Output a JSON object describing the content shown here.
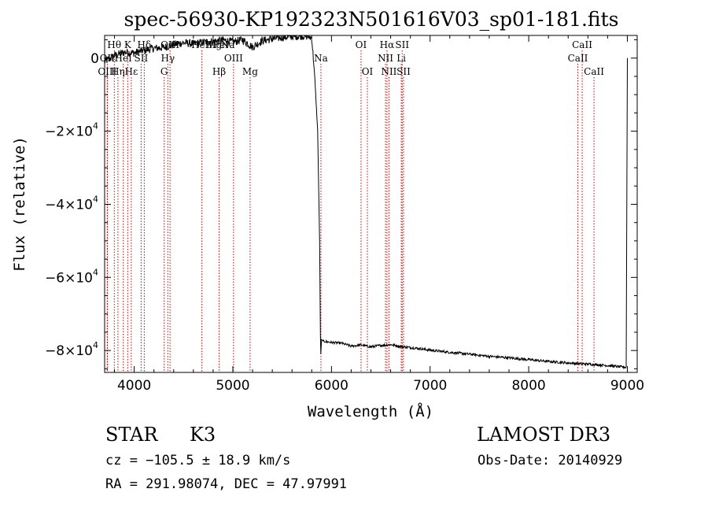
{
  "chart_data": {
    "type": "line",
    "title": "spec-56930-KP192323N501616V03_sp01-181.fits",
    "xlabel": "Wavelength (Å)",
    "ylabel": "Flux (relative)",
    "xlim": [
      3700,
      9100
    ],
    "ylim": [
      -86000,
      6200
    ],
    "x_ticks": [
      {
        "value": 4000,
        "label": "4000"
      },
      {
        "value": 5000,
        "label": "5000"
      },
      {
        "value": 6000,
        "label": "6000"
      },
      {
        "value": 7000,
        "label": "7000"
      },
      {
        "value": 8000,
        "label": "8000"
      },
      {
        "value": 9000,
        "label": "9000"
      }
    ],
    "y_ticks": [
      {
        "value": 0,
        "label": "0"
      },
      {
        "value": -20000,
        "label": "−2×10",
        "exp": "4"
      },
      {
        "value": -40000,
        "label": "−4×10",
        "exp": "4"
      },
      {
        "value": -60000,
        "label": "−6×10",
        "exp": "4"
      },
      {
        "value": -80000,
        "label": "−8×10",
        "exp": "4"
      }
    ],
    "spectrum": {
      "name": "flux",
      "x": [
        3700,
        3800,
        3900,
        4000,
        4100,
        4200,
        4300,
        4400,
        4500,
        4600,
        4700,
        4800,
        4900,
        5000,
        5100,
        5200,
        5300,
        5400,
        5500,
        5600,
        5700,
        5750,
        5800,
        5830,
        5860,
        5880,
        5890,
        5900,
        5920,
        6000,
        6100,
        6200,
        6300,
        6400,
        6500,
        6600,
        6700,
        6800,
        6900,
        7000,
        7200,
        7400,
        7600,
        7800,
        8000,
        8200,
        8400,
        8500,
        8600,
        8700,
        8800,
        8900,
        8990,
        9000
      ],
      "y": [
        -1000,
        700,
        1600,
        1400,
        2100,
        2700,
        2900,
        3700,
        4200,
        3900,
        4300,
        4600,
        4900,
        4400,
        5000,
        3000,
        4800,
        5200,
        5700,
        5900,
        6100,
        6000,
        5500,
        -5000,
        -20000,
        -50000,
        -82000,
        -77000,
        -77500,
        -77800,
        -78000,
        -78800,
        -78500,
        -79000,
        -78600,
        -78400,
        -78900,
        -79200,
        -79500,
        -79900,
        -80500,
        -81000,
        -81600,
        -82000,
        -82500,
        -83000,
        -83400,
        -83600,
        -83700,
        -83900,
        -84100,
        -84400,
        -84600,
        0
      ]
    },
    "lines": [
      {
        "label": "Hθ",
        "x": 3798,
        "row": 1
      },
      {
        "label": "OII",
        "x": 3727,
        "row": 2
      },
      {
        "label": "OIII",
        "x": 3727,
        "row": 3
      },
      {
        "label": "Hη",
        "x": 3835,
        "row": 3
      },
      {
        "label": "K",
        "x": 3934,
        "row": 1
      },
      {
        "label": "Hε",
        "x": 3970,
        "row": 3
      },
      {
        "label": "HeI",
        "x": 3889,
        "row": 2
      },
      {
        "label": "Hδ",
        "x": 4102,
        "row": 1
      },
      {
        "label": "SII",
        "x": 4070,
        "row": 2
      },
      {
        "label": "OIII",
        "x": 4363,
        "row": 1
      },
      {
        "label": "Hγ",
        "x": 4341,
        "row": 2
      },
      {
        "label": "G",
        "x": 4304,
        "row": 3
      },
      {
        "label": "HeII",
        "x": 4686,
        "row": 1
      },
      {
        "label": "OIII",
        "x": 5007,
        "row": 2
      },
      {
        "label": "Hβ",
        "x": 4861,
        "row": 3
      },
      {
        "label": "Mg",
        "x": 5175,
        "row": 3
      },
      {
        "label": "Na",
        "x": 5893,
        "row": 2
      },
      {
        "label": "OI",
        "x": 6300,
        "row": 1
      },
      {
        "label": "OI",
        "x": 6364,
        "row": 3
      },
      {
        "label": "Hα",
        "x": 6563,
        "row": 1
      },
      {
        "label": "NII",
        "x": 6548,
        "row": 2
      },
      {
        "label": "NII",
        "x": 6583,
        "row": 3
      },
      {
        "label": "SII",
        "x": 6717,
        "row": 1
      },
      {
        "label": "Li",
        "x": 6708,
        "row": 2
      },
      {
        "label": "SII",
        "x": 6731,
        "row": 3
      },
      {
        "label": "CaII",
        "x": 8542,
        "row": 1
      },
      {
        "label": "CaII",
        "x": 8498,
        "row": 2
      },
      {
        "label": "CaII",
        "x": 8662,
        "row": 3
      }
    ],
    "top_labels": [
      "Mg",
      "FeI",
      "Na"
    ]
  },
  "info": {
    "class_label": "STAR",
    "subclass": "K3",
    "survey": "LAMOST DR3",
    "cz": "cz = −105.5 ± 18.9 km/s",
    "obs_date": "Obs-Date: 20140929",
    "coords": "RA = 291.98074, DEC =  47.97991"
  },
  "colors": {
    "line_marker": "#cc0000",
    "spectrum": "#000000",
    "axes": "#000000"
  }
}
